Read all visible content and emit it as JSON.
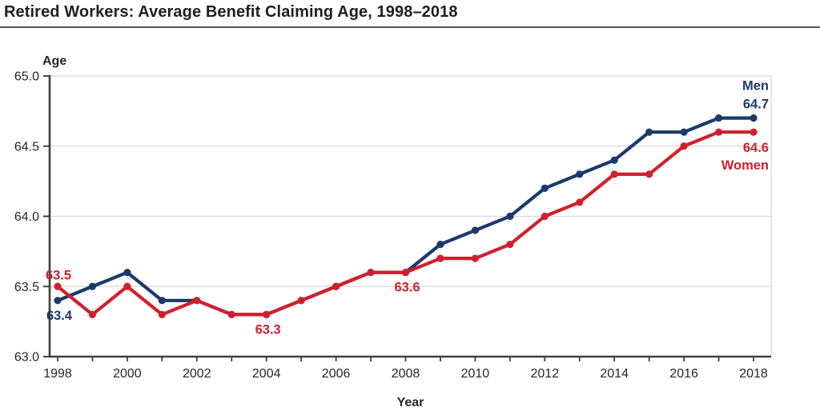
{
  "page": {
    "title": "Retired Workers: Average Benefit Claiming Age, 1998–2018"
  },
  "chart_data": {
    "type": "line",
    "title": "Retired Workers: Average Benefit Claiming Age, 1998–2018",
    "xlabel": "Year",
    "ylabel": "Age",
    "ylim": [
      63.0,
      65.0
    ],
    "ytick_step": 0.5,
    "ytick_labels": [
      "63.0",
      "63.5",
      "64.0",
      "64.5",
      "65.0"
    ],
    "x": [
      1998,
      1999,
      2000,
      2001,
      2002,
      2003,
      2004,
      2005,
      2006,
      2007,
      2008,
      2009,
      2010,
      2011,
      2012,
      2013,
      2014,
      2015,
      2016,
      2017,
      2018
    ],
    "xtick_labels": [
      1998,
      2000,
      2002,
      2004,
      2006,
      2008,
      2010,
      2012,
      2014,
      2016,
      2018
    ],
    "grid": "horizontal",
    "legend_position": "inline-end-labels",
    "series": [
      {
        "name": "Men",
        "color": "#1B3A6B",
        "values": [
          63.4,
          63.5,
          63.6,
          63.4,
          63.4,
          63.3,
          63.3,
          63.4,
          63.5,
          63.6,
          63.6,
          63.8,
          63.9,
          64.0,
          64.2,
          64.3,
          64.4,
          64.6,
          64.6,
          64.7,
          64.7
        ]
      },
      {
        "name": "Women",
        "color": "#D0202E",
        "values": [
          63.5,
          63.3,
          63.5,
          63.3,
          63.4,
          63.3,
          63.3,
          63.4,
          63.5,
          63.6,
          63.6,
          63.7,
          63.7,
          63.8,
          64.0,
          64.1,
          64.3,
          64.3,
          64.5,
          64.6,
          64.6
        ]
      }
    ],
    "annotations": [
      {
        "text": "63.5",
        "series": "Women",
        "year": 1998,
        "placement": "above"
      },
      {
        "text": "63.4",
        "series": "Men",
        "year": 1998,
        "placement": "below"
      },
      {
        "text": "63.3",
        "series": "Women",
        "year": 2004,
        "placement": "below"
      },
      {
        "text": "63.6",
        "series": "Women",
        "year": 2008,
        "placement": "below"
      },
      {
        "text": "Men",
        "series": "Men",
        "year": 2018,
        "placement": "end-top-1"
      },
      {
        "text": "64.7",
        "series": "Men",
        "year": 2018,
        "placement": "end-top-2"
      },
      {
        "text": "64.6",
        "series": "Women",
        "year": 2018,
        "placement": "end-bottom-1"
      },
      {
        "text": "Women",
        "series": "Women",
        "year": 2018,
        "placement": "end-bottom-2"
      }
    ],
    "colors": {
      "grid": "#D9D9D9",
      "axis": "#404040",
      "tick_text": "#262626",
      "title_text": "#1f1f1f"
    }
  }
}
